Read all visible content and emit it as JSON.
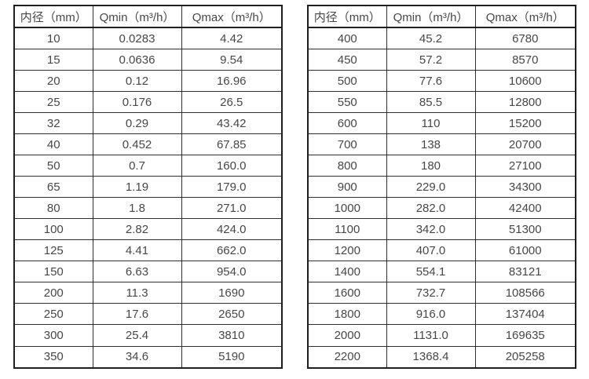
{
  "page": {
    "background": "#ffffff",
    "text_color": "#474747",
    "grid_line_color": "#2e2e2e",
    "outer_border_color": "#1f1f1f"
  },
  "tables": [
    {
      "name": "flow-spec-table-small-diameters",
      "headers": [
        "内径（mm）",
        "Qmin（m³/h）",
        "Qmax（m³/h）"
      ],
      "rows": [
        [
          "10",
          "0.0283",
          "4.42"
        ],
        [
          "15",
          "0.0636",
          "9.54"
        ],
        [
          "20",
          "0.12",
          "16.96"
        ],
        [
          "25",
          "0.176",
          "26.5"
        ],
        [
          "32",
          "0.29",
          "43.42"
        ],
        [
          "40",
          "0.452",
          "67.85"
        ],
        [
          "50",
          "0.7",
          "160.0"
        ],
        [
          "65",
          "1.19",
          "179.0"
        ],
        [
          "80",
          "1.8",
          "271.0"
        ],
        [
          "100",
          "2.82",
          "424.0"
        ],
        [
          "125",
          "4.41",
          "662.0"
        ],
        [
          "150",
          "6.63",
          "954.0"
        ],
        [
          "200",
          "11.3",
          "1690"
        ],
        [
          "250",
          "17.6",
          "2650"
        ],
        [
          "300",
          "25.4",
          "3810"
        ],
        [
          "350",
          "34.6",
          "5190"
        ]
      ]
    },
    {
      "name": "flow-spec-table-large-diameters",
      "headers": [
        "内径（mm）",
        "Qmin（m³/h）",
        "Qmax（m³/h）"
      ],
      "rows": [
        [
          "400",
          "45.2",
          "6780"
        ],
        [
          "450",
          "57.2",
          "8570"
        ],
        [
          "500",
          "77.6",
          "10600"
        ],
        [
          "550",
          "85.5",
          "12800"
        ],
        [
          "600",
          "110",
          "15200"
        ],
        [
          "700",
          "138",
          "20700"
        ],
        [
          "800",
          "180",
          "27100"
        ],
        [
          "900",
          "229.0",
          "34300"
        ],
        [
          "1000",
          "282.0",
          "42400"
        ],
        [
          "1100",
          "342.0",
          "51300"
        ],
        [
          "1200",
          "407.0",
          "61000"
        ],
        [
          "1400",
          "554.1",
          "83121"
        ],
        [
          "1600",
          "732.7",
          "108566"
        ],
        [
          "1800",
          "916.0",
          "137404"
        ],
        [
          "2000",
          "1131.0",
          "169635"
        ],
        [
          "2200",
          "1368.4",
          "205258"
        ]
      ]
    }
  ]
}
